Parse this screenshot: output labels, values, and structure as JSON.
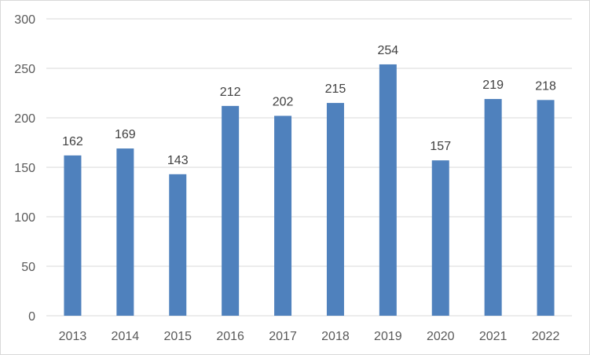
{
  "chart_data": {
    "type": "bar",
    "categories": [
      "2013",
      "2014",
      "2015",
      "2016",
      "2017",
      "2018",
      "2019",
      "2020",
      "2021",
      "2022"
    ],
    "values": [
      162,
      169,
      143,
      212,
      202,
      215,
      254,
      157,
      219,
      218
    ],
    "title": "",
    "xlabel": "",
    "ylabel": "",
    "ylim": [
      0,
      300
    ],
    "yticks": [
      0,
      50,
      100,
      150,
      200,
      250,
      300
    ],
    "grid": true,
    "legend": "none",
    "data_labels": true,
    "colors": {
      "bar": "#4f81bd",
      "grid": "#d9d9d9",
      "axis_text": "#595959",
      "data_label": "#404040"
    }
  }
}
